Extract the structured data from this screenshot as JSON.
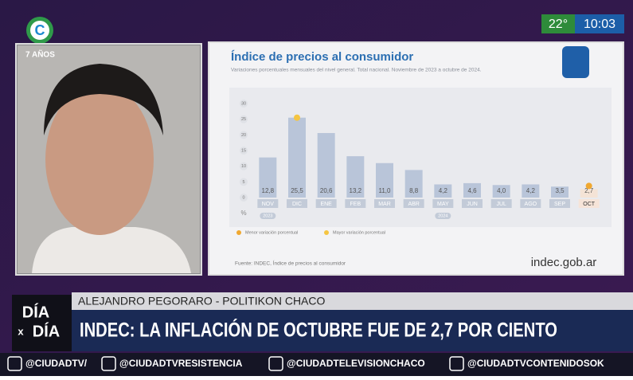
{
  "overlay": {
    "age": "7 AÑOS",
    "temperature": "22°",
    "time": "10:03",
    "logo": "C",
    "name_strip": "ALEJANDRO PEGORARO - POLITIKON CHACO",
    "headline": "INDEC: LA INFLACIÓN DE OCTUBRE FUE DE 2,7 POR CIENTO",
    "show_logo": [
      "DÍA",
      "x",
      "DÍA"
    ],
    "socials": [
      "@CIUDADTV/",
      "@CIUDADTVRESISTENCIA",
      "@CIUDADTELEVISIONCHACO",
      "@CIUDADTVCONTENIDOSOK"
    ]
  },
  "chart_data": {
    "type": "bar",
    "title": "Índice de precios al consumidor",
    "subtitle": "Variaciones porcentuales mensuales del nivel general. Total nacional. Noviembre de 2023 a octubre de 2024.",
    "categories": [
      "NOV",
      "DIC",
      "ENE",
      "FEB",
      "MAR",
      "ABR",
      "MAY",
      "JUN",
      "JUL",
      "AGO",
      "SEP",
      "OCT"
    ],
    "values": [
      12.8,
      25.5,
      20.6,
      13.2,
      11.0,
      8.8,
      4.2,
      4.6,
      4.0,
      4.2,
      3.5,
      2.7
    ],
    "value_labels": [
      "12,8",
      "25,5",
      "20,6",
      "13,2",
      "11,0",
      "8,8",
      "4,2",
      "4,6",
      "4,0",
      "4,2",
      "3,5",
      "2,7"
    ],
    "colors": [
      "#b9c5d9",
      "#b9c5d9",
      "#b9c5d9",
      "#b9c5d9",
      "#b9c5d9",
      "#b9c5d9",
      "#b9c5d9",
      "#b9c5d9",
      "#b9c5d9",
      "#b9c5d9",
      "#b9c5d9",
      "#f4e3d6"
    ],
    "ylim": [
      0,
      30
    ],
    "yticks": [
      0,
      5,
      10,
      15,
      20,
      25,
      30
    ],
    "y_unit": "%",
    "years": [
      "2023",
      "2024"
    ],
    "legend": [
      {
        "label": "Menor variación porcentual",
        "color": "#f0a830"
      },
      {
        "label": "Mayor variación porcentual",
        "color": "#f5c542"
      }
    ],
    "source": "Fuente: INDEC, Índice de precios al consumidor",
    "brand": "indec.gob.ar"
  }
}
